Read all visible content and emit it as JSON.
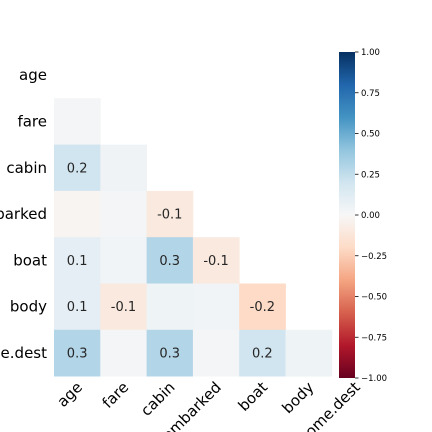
{
  "chart_data": {
    "type": "heatmap",
    "title": "",
    "xlabel": "",
    "ylabel": "",
    "row_labels": [
      "age",
      "fare",
      "cabin",
      "embarked",
      "boat",
      "body",
      "home.dest"
    ],
    "col_labels": [
      "age",
      "fare",
      "cabin",
      "embarked",
      "boat",
      "body",
      "home.dest"
    ],
    "mask": "upper triangle including diagonal",
    "cells": [
      {
        "row": 1,
        "col": 0,
        "value": 0.02,
        "label": ""
      },
      {
        "row": 2,
        "col": 0,
        "value": 0.2,
        "label": "0.2"
      },
      {
        "row": 2,
        "col": 1,
        "value": 0.04,
        "label": ""
      },
      {
        "row": 3,
        "col": 0,
        "value": -0.02,
        "label": ""
      },
      {
        "row": 3,
        "col": 1,
        "value": 0.02,
        "label": ""
      },
      {
        "row": 3,
        "col": 2,
        "value": -0.1,
        "label": "-0.1"
      },
      {
        "row": 4,
        "col": 0,
        "value": 0.1,
        "label": "0.1"
      },
      {
        "row": 4,
        "col": 1,
        "value": 0.03,
        "label": ""
      },
      {
        "row": 4,
        "col": 2,
        "value": 0.3,
        "label": "0.3"
      },
      {
        "row": 4,
        "col": 3,
        "value": -0.1,
        "label": "-0.1"
      },
      {
        "row": 5,
        "col": 0,
        "value": 0.1,
        "label": "0.1"
      },
      {
        "row": 5,
        "col": 1,
        "value": -0.1,
        "label": "-0.1"
      },
      {
        "row": 5,
        "col": 2,
        "value": 0.05,
        "label": ""
      },
      {
        "row": 5,
        "col": 3,
        "value": 0.03,
        "label": ""
      },
      {
        "row": 5,
        "col": 4,
        "value": -0.2,
        "label": "-0.2"
      },
      {
        "row": 6,
        "col": 0,
        "value": 0.3,
        "label": "0.3"
      },
      {
        "row": 6,
        "col": 1,
        "value": 0.02,
        "label": ""
      },
      {
        "row": 6,
        "col": 2,
        "value": 0.3,
        "label": "0.3"
      },
      {
        "row": 6,
        "col": 3,
        "value": 0.02,
        "label": ""
      },
      {
        "row": 6,
        "col": 4,
        "value": 0.2,
        "label": "0.2"
      },
      {
        "row": 6,
        "col": 5,
        "value": 0.05,
        "label": ""
      }
    ],
    "colorbar": {
      "min": -1.0,
      "max": 1.0,
      "ticks": [
        "1.00",
        "0.75",
        "0.50",
        "0.25",
        "0.00",
        "−0.25",
        "−0.50",
        "−0.75",
        "−1.00"
      ],
      "colormap": "RdBu",
      "colors": [
        "#67001f",
        "#b2182b",
        "#d6604d",
        "#f4a582",
        "#fddbc7",
        "#f7f7f7",
        "#d1e5f0",
        "#92c5de",
        "#4393c3",
        "#2166ac",
        "#053061"
      ]
    },
    "grid": false
  }
}
